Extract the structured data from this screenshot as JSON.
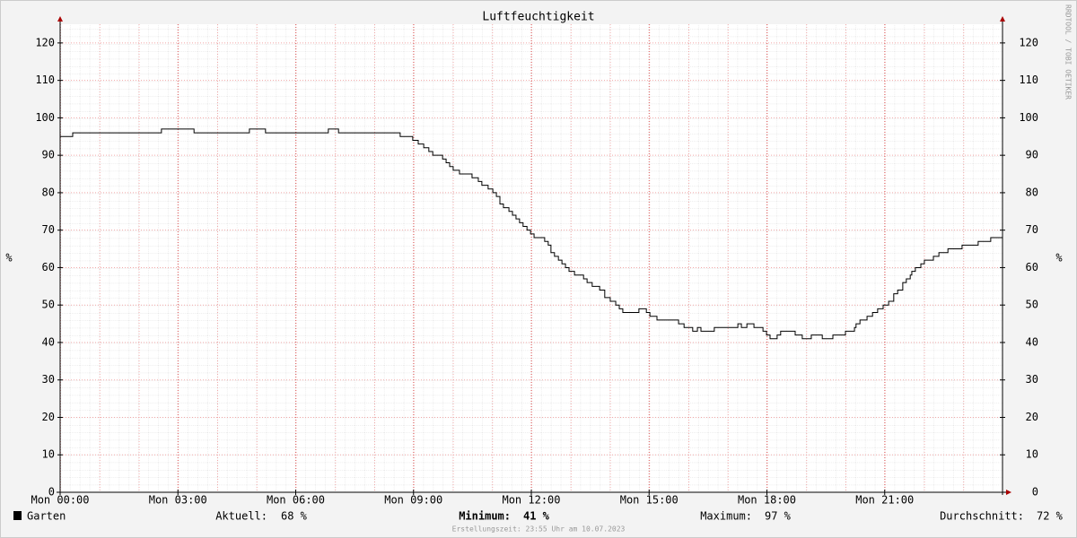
{
  "chart_data": {
    "type": "line",
    "title": "Luftfeuchtigkeit",
    "y_label": "%",
    "y2_label": "%",
    "watermark": "RRDTOOL / TOBI OETIKER",
    "xlim": [
      0,
      24
    ],
    "ylim": [
      0,
      125
    ],
    "xticks": [
      {
        "value": 0,
        "label": "Mon 00:00"
      },
      {
        "value": 3,
        "label": "Mon 03:00"
      },
      {
        "value": 6,
        "label": "Mon 06:00"
      },
      {
        "value": 9,
        "label": "Mon 09:00"
      },
      {
        "value": 12,
        "label": "Mon 12:00"
      },
      {
        "value": 15,
        "label": "Mon 15:00"
      },
      {
        "value": 18,
        "label": "Mon 18:00"
      },
      {
        "value": 21,
        "label": "Mon 21:00"
      }
    ],
    "yticks": [
      0,
      10,
      20,
      30,
      40,
      50,
      60,
      70,
      80,
      90,
      100,
      110,
      120
    ],
    "grid": true,
    "series": [
      {
        "name": "Garten",
        "color": "#000000",
        "x": [
          0,
          0.32,
          2.58,
          3.41,
          4.82,
          5.23,
          6.83,
          7.09,
          8.66,
          8.98,
          9.12,
          9.26,
          9.39,
          9.49,
          9.74,
          9.83,
          9.92,
          10.01,
          10.17,
          10.49,
          10.65,
          10.74,
          10.9,
          11.02,
          11.11,
          11.2,
          11.29,
          11.43,
          11.52,
          11.61,
          11.7,
          11.79,
          11.89,
          11.98,
          12.07,
          12.34,
          12.43,
          12.5,
          12.59,
          12.69,
          12.78,
          12.87,
          12.96,
          13.1,
          13.33,
          13.42,
          13.55,
          13.74,
          13.87,
          14.01,
          14.15,
          14.24,
          14.33,
          14.74,
          14.93,
          15.02,
          15.2,
          15.75,
          15.89,
          16.11,
          16.23,
          16.32,
          16.66,
          17.26,
          17.35,
          17.49,
          17.67,
          17.9,
          17.99,
          18.08,
          18.26,
          18.35,
          18.72,
          18.9,
          19.13,
          19.41,
          19.68,
          20.0,
          20.23,
          20.27,
          20.37,
          20.55,
          20.69,
          20.82,
          20.96,
          21.1,
          21.23,
          21.33,
          21.46,
          21.55,
          21.65,
          21.69,
          21.78,
          21.92,
          22.01,
          22.24,
          22.38,
          22.61,
          22.97,
          23.38,
          23.7,
          24
        ],
        "values": [
          95,
          96,
          97,
          96,
          97,
          96,
          97,
          96,
          95,
          94,
          93,
          92,
          91,
          90,
          89,
          88,
          87,
          86,
          85,
          84,
          83,
          82,
          81,
          80,
          79,
          77,
          76,
          75,
          74,
          73,
          72,
          71,
          70,
          69,
          68,
          67,
          66,
          64,
          63,
          62,
          61,
          60,
          59,
          58,
          57,
          56,
          55,
          54,
          52,
          51,
          50,
          49,
          48,
          49,
          48,
          47,
          46,
          45,
          44,
          43,
          44,
          43,
          44,
          45,
          44,
          45,
          44,
          43,
          42,
          41,
          42,
          43,
          42,
          41,
          42,
          41,
          42,
          43,
          44,
          45,
          46,
          47,
          48,
          49,
          50,
          51,
          53,
          54,
          56,
          57,
          58,
          59,
          60,
          61,
          62,
          63,
          64,
          65,
          66,
          67,
          68,
          68
        ]
      }
    ],
    "legend_stats": [
      {
        "label": "Aktuell:",
        "value": "68 %"
      },
      {
        "label": "Minimum:",
        "value": "41 %"
      },
      {
        "label": "Maximum:",
        "value": "97 %"
      },
      {
        "label": "Durchschnitt:",
        "value": "72 %"
      }
    ],
    "footer": "Erstellungszeit: 23:55 Uhr am 10.07.2023"
  }
}
